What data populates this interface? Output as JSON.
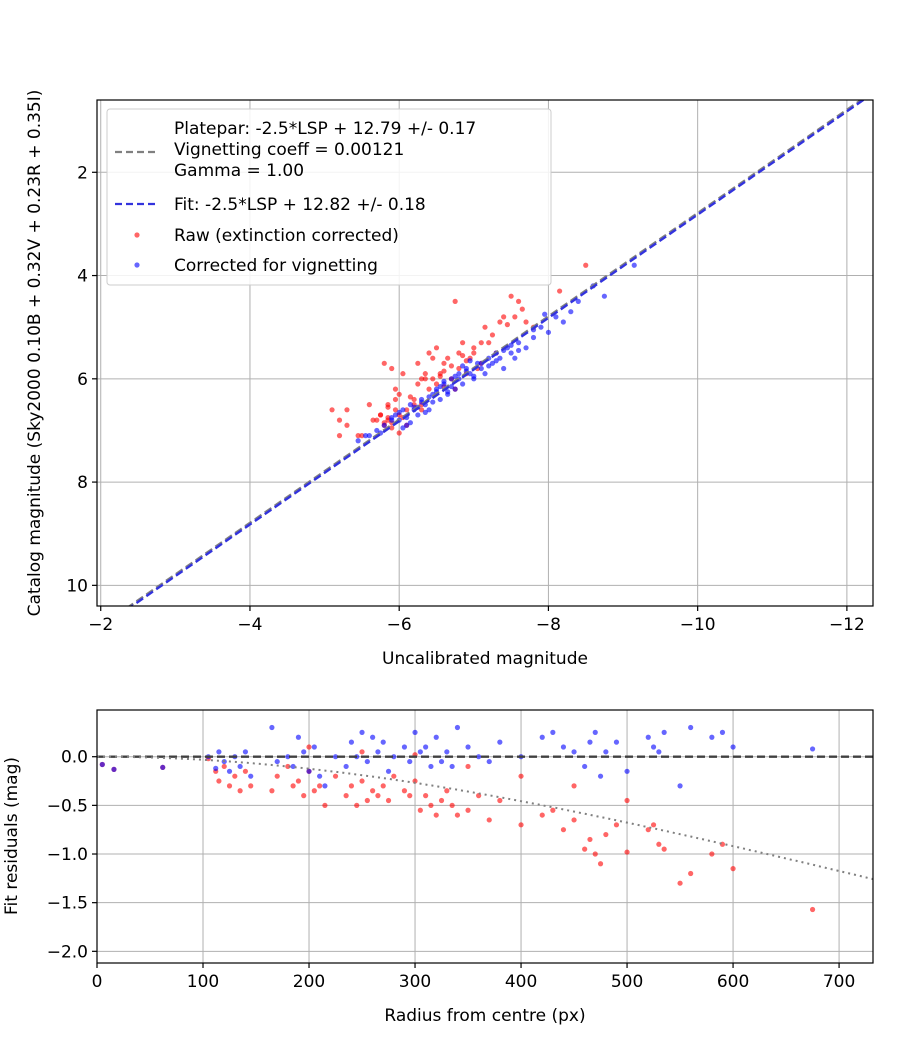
{
  "chart_data": [
    {
      "type": "scatter",
      "xlabel": "Uncalibrated magnitude",
      "ylabel": "Catalog magnitude (Sky2000 0.10B + 0.32V + 0.23R + 0.35I)",
      "xlim": [
        -1.95,
        -12.35
      ],
      "ylim": [
        0.6,
        10.4
      ],
      "x_inverted": true,
      "y_inverted": true,
      "grid": true,
      "legend_position": "upper-left",
      "x_ticks": [
        {
          "value": -2,
          "label": "−2"
        },
        {
          "value": -4,
          "label": "−4"
        },
        {
          "value": -6,
          "label": "−6"
        },
        {
          "value": -8,
          "label": "−8"
        },
        {
          "value": -10,
          "label": "−10"
        },
        {
          "value": -12,
          "label": "−12"
        }
      ],
      "y_ticks": [
        {
          "value": 2,
          "label": "2"
        },
        {
          "value": 4,
          "label": "4"
        },
        {
          "value": 6,
          "label": "6"
        },
        {
          "value": 8,
          "label": "8"
        },
        {
          "value": 10,
          "label": "10"
        }
      ],
      "lines": [
        {
          "name": "Platepar: -2.5*LSP + 12.79 +/- 0.17\nVignetting coeff = 0.00121\nGamma = 1.00",
          "color": "#808080",
          "dash": "dashed",
          "x": [
            -1.95,
            -12.35
          ],
          "y": [
            10.84,
            0.44
          ]
        },
        {
          "name": "Fit: -2.5*LSP + 12.82 +/- 0.18",
          "color": "#3333dd",
          "dash": "dashed",
          "x": [
            -1.95,
            -12.35
          ],
          "y": [
            10.87,
            0.47
          ]
        }
      ],
      "series": [
        {
          "name": "Raw (extinction corrected)",
          "color": "#ff0000",
          "x": [
            -5.1,
            -5.2,
            -5.3,
            -5.45,
            -5.6,
            -5.7,
            -5.75,
            -5.8,
            -5.8,
            -5.85,
            -5.9,
            -5.95,
            -6.0,
            -6.05,
            -5.85,
            -5.95,
            -6.1,
            -6.2,
            -6.25,
            -6.3,
            -6.35,
            -6.4,
            -6.45,
            -6.5,
            -6.55,
            -6.6,
            -6.65,
            -6.7,
            -6.75,
            -6.8,
            -6.85,
            -6.9,
            -6.95,
            -7.0,
            -7.05,
            -7.1,
            -7.15,
            -7.2,
            -7.3,
            -7.35,
            -7.4,
            -7.5,
            -7.55,
            -7.6,
            -7.8,
            -8.15,
            -8.5,
            -6.75,
            -5.85,
            -5.9,
            -6.0,
            -6.05,
            -6.1,
            -6.2,
            -6.3,
            -6.4,
            -6.5,
            -6.45,
            -6.6,
            -6.7,
            -6.8,
            -6.9,
            -7.0,
            -7.1,
            -5.65,
            -5.75,
            -5.85,
            -5.95,
            -6.15,
            -6.35,
            -5.5,
            -5.3,
            -5.2,
            -6.25,
            -6.55,
            -6.85,
            -7.25,
            -7.45,
            -7.65,
            -7.7,
            -5.9,
            -6.0,
            -5.8,
            -6.3,
            -6.6
          ],
          "y": [
            6.6,
            7.1,
            6.6,
            7.1,
            6.5,
            6.8,
            6.7,
            5.7,
            6.9,
            6.5,
            5.8,
            6.2,
            6.3,
            5.9,
            6.8,
            6.6,
            6.6,
            6.5,
            5.7,
            6.0,
            5.9,
            5.5,
            5.6,
            5.4,
            5.9,
            5.7,
            5.6,
            6.0,
            4.5,
            5.5,
            5.3,
            5.9,
            5.6,
            5.4,
            5.8,
            5.7,
            5.0,
            5.3,
            5.5,
            4.9,
            4.8,
            4.4,
            4.8,
            4.5,
            5.0,
            4.3,
            3.8,
            6.2,
            6.75,
            6.85,
            6.7,
            6.75,
            6.9,
            6.4,
            6.6,
            6.2,
            6.1,
            6.0,
            5.85,
            5.75,
            5.8,
            5.65,
            5.5,
            5.3,
            6.8,
            6.7,
            6.55,
            6.4,
            6.35,
            6.0,
            7.1,
            6.9,
            6.8,
            6.1,
            5.95,
            5.55,
            5.15,
            4.95,
            4.65,
            4.9,
            6.95,
            7.05,
            6.85,
            6.5,
            6.15
          ]
        },
        {
          "name": "Corrected for vignetting",
          "color": "#0000ff",
          "x": [
            -5.45,
            -5.6,
            -5.7,
            -5.8,
            -5.9,
            -5.95,
            -6.0,
            -6.05,
            -6.1,
            -6.15,
            -6.2,
            -6.25,
            -6.3,
            -6.35,
            -6.4,
            -6.45,
            -6.5,
            -6.55,
            -6.6,
            -6.65,
            -6.7,
            -6.75,
            -6.8,
            -6.85,
            -6.9,
            -6.95,
            -7.0,
            -7.05,
            -7.1,
            -7.15,
            -7.2,
            -7.25,
            -7.3,
            -7.35,
            -7.4,
            -7.45,
            -7.5,
            -7.55,
            -7.6,
            -7.7,
            -7.8,
            -7.9,
            -8.0,
            -8.1,
            -8.2,
            -8.3,
            -8.4,
            -8.6,
            -8.75,
            -9.15,
            -5.55,
            -5.75,
            -5.9,
            -6.0,
            -6.1,
            -6.2,
            -6.3,
            -6.4,
            -6.5,
            -6.6,
            -6.7,
            -6.8,
            -6.9,
            -7.0,
            -7.1,
            -7.2,
            -7.3,
            -7.4,
            -7.5,
            -7.6,
            -7.8,
            -7.95,
            -6.05,
            -6.15,
            -6.25,
            -6.35,
            -6.45,
            -6.55,
            -6.65,
            -6.75,
            -6.85,
            -6.95
          ],
          "y": [
            7.2,
            7.1,
            7.0,
            6.9,
            6.8,
            6.7,
            6.8,
            6.6,
            6.9,
            6.5,
            6.6,
            6.7,
            6.4,
            6.5,
            6.6,
            6.3,
            6.2,
            6.4,
            6.1,
            6.3,
            6.0,
            6.2,
            5.9,
            6.1,
            5.8,
            5.9,
            6.0,
            5.7,
            5.8,
            5.9,
            5.6,
            5.7,
            5.5,
            5.6,
            5.8,
            5.4,
            5.5,
            5.6,
            5.3,
            5.4,
            5.2,
            5.0,
            5.1,
            4.8,
            4.9,
            4.7,
            4.5,
            4.2,
            4.4,
            3.8,
            7.1,
            7.05,
            6.75,
            6.65,
            6.75,
            6.55,
            6.45,
            6.35,
            6.25,
            6.05,
            6.15,
            6.0,
            5.85,
            5.95,
            5.7,
            5.75,
            5.65,
            5.45,
            5.35,
            5.45,
            5.05,
            4.75,
            6.95,
            6.85,
            6.55,
            6.65,
            6.45,
            6.15,
            6.25,
            5.95,
            5.75,
            5.65
          ]
        }
      ]
    },
    {
      "type": "scatter",
      "xlabel": "Radius from centre (px)",
      "ylabel": "Fit residuals (mag)",
      "xlim": [
        0,
        732
      ],
      "ylim": [
        -2.12,
        0.48
      ],
      "grid": true,
      "x_ticks": [
        {
          "value": 0,
          "label": "0"
        },
        {
          "value": 100,
          "label": "100"
        },
        {
          "value": 200,
          "label": "200"
        },
        {
          "value": 300,
          "label": "300"
        },
        {
          "value": 400,
          "label": "400"
        },
        {
          "value": 500,
          "label": "500"
        },
        {
          "value": 600,
          "label": "600"
        },
        {
          "value": 700,
          "label": "700"
        }
      ],
      "y_ticks": [
        {
          "value": 0.0,
          "label": "0.0"
        },
        {
          "value": -0.5,
          "label": "−0.5"
        },
        {
          "value": -1.0,
          "label": "−1.0"
        },
        {
          "value": -1.5,
          "label": "−1.5"
        },
        {
          "value": -2.0,
          "label": "−2.0"
        }
      ],
      "lines": [
        {
          "color": "#404040",
          "dash": "dashed",
          "x": [
            0,
            732
          ],
          "y": [
            0,
            0
          ]
        },
        {
          "color": "#808080",
          "dash": "dotted",
          "function": "vignetting",
          "coeff": 0.00121
        }
      ],
      "series": [
        {
          "color": "#ff0000",
          "x": [
            5,
            16,
            62,
            105,
            112,
            115,
            120,
            125,
            130,
            135,
            140,
            145,
            165,
            170,
            180,
            185,
            190,
            195,
            200,
            205,
            210,
            215,
            225,
            235,
            240,
            245,
            250,
            255,
            260,
            265,
            270,
            275,
            280,
            290,
            295,
            300,
            305,
            310,
            315,
            320,
            325,
            330,
            335,
            340,
            350,
            360,
            370,
            380,
            400,
            420,
            430,
            440,
            450,
            460,
            465,
            470,
            475,
            480,
            490,
            500,
            520,
            525,
            530,
            535,
            550,
            560,
            580,
            590,
            600,
            675,
            200,
            250,
            300,
            350,
            400,
            450,
            500
          ],
          "y": [
            -0.08,
            -0.13,
            -0.11,
            -0.02,
            -0.15,
            -0.25,
            -0.1,
            -0.3,
            -0.2,
            -0.35,
            -0.15,
            -0.3,
            -0.35,
            -0.2,
            -0.1,
            -0.3,
            -0.25,
            -0.4,
            -0.15,
            -0.35,
            -0.3,
            -0.5,
            -0.2,
            -0.4,
            -0.3,
            -0.5,
            -0.25,
            -0.45,
            -0.35,
            -0.4,
            -0.3,
            -0.45,
            -0.2,
            -0.35,
            -0.4,
            -0.25,
            -0.55,
            -0.4,
            -0.5,
            -0.6,
            -0.45,
            -0.35,
            -0.5,
            -0.6,
            -0.55,
            -0.4,
            -0.65,
            -0.45,
            -0.7,
            -0.6,
            -0.55,
            -0.75,
            -0.65,
            -0.95,
            -0.85,
            -1.0,
            -1.1,
            -0.8,
            -0.7,
            -0.98,
            -0.75,
            -0.7,
            -0.9,
            -0.95,
            -1.3,
            -1.2,
            -1.0,
            -0.9,
            -1.15,
            -1.57,
            0.1,
            0.05,
            0.02,
            -0.1,
            -0.2,
            -0.3,
            -0.45
          ]
        },
        {
          "color": "#0000ff",
          "x": [
            5,
            16,
            62,
            105,
            112,
            115,
            120,
            125,
            130,
            135,
            140,
            145,
            165,
            170,
            180,
            185,
            190,
            195,
            200,
            205,
            210,
            215,
            225,
            235,
            240,
            245,
            250,
            255,
            260,
            265,
            270,
            275,
            280,
            290,
            295,
            300,
            305,
            310,
            315,
            320,
            325,
            330,
            335,
            340,
            350,
            360,
            370,
            380,
            400,
            420,
            430,
            440,
            450,
            460,
            465,
            470,
            475,
            480,
            490,
            500,
            520,
            525,
            530,
            535,
            550,
            560,
            580,
            590,
            600,
            675
          ],
          "y": [
            -0.08,
            -0.13,
            -0.11,
            0.0,
            -0.12,
            0.05,
            -0.05,
            -0.15,
            0.0,
            -0.1,
            0.05,
            -0.2,
            0.3,
            -0.05,
            0.0,
            -0.1,
            0.2,
            0.05,
            -0.15,
            0.1,
            -0.2,
            -0.3,
            0.0,
            -0.1,
            0.15,
            0.0,
            0.25,
            -0.05,
            0.2,
            0.05,
            0.15,
            -0.15,
            0.0,
            0.1,
            -0.05,
            0.25,
            0.05,
            0.1,
            -0.1,
            0.2,
            -0.05,
            0.05,
            -0.1,
            0.3,
            0.1,
            0.0,
            -0.05,
            0.15,
            0.0,
            0.2,
            0.25,
            0.1,
            0.05,
            -0.1,
            0.15,
            0.25,
            -0.2,
            0.05,
            0.15,
            -0.15,
            0.2,
            0.1,
            0.05,
            0.25,
            -0.3,
            0.3,
            0.2,
            0.25,
            0.1,
            0.08
          ]
        }
      ]
    }
  ],
  "legend": {
    "items": [
      {
        "kind": "line",
        "color": "#808080",
        "dash": "dashed",
        "text": "Platepar: -2.5*LSP + 12.79 +/- 0.17\nVignetting coeff = 0.00121\nGamma = 1.00"
      },
      {
        "kind": "line",
        "color": "#3333dd",
        "dash": "dashed",
        "text": "Fit: -2.5*LSP + 12.82 +/- 0.18"
      },
      {
        "kind": "dot",
        "color": "#ff0000",
        "text": "Raw (extinction corrected)"
      },
      {
        "kind": "dot",
        "color": "#0000ff",
        "text": "Corrected for vignetting"
      }
    ]
  }
}
